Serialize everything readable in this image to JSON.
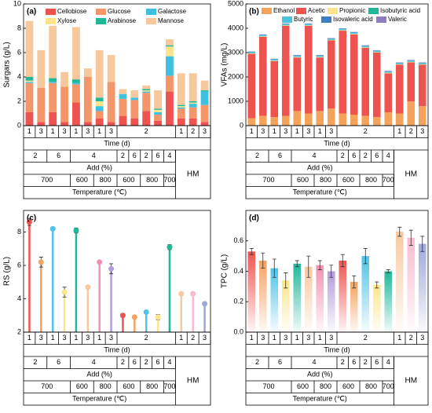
{
  "x_table": {
    "time": [
      {
        "label": "1",
        "span": 1
      },
      {
        "label": "3",
        "span": 1
      },
      {
        "label": "1",
        "span": 1
      },
      {
        "label": "3",
        "span": 1
      },
      {
        "label": "1",
        "span": 1
      },
      {
        "label": "3",
        "span": 1
      },
      {
        "label": "1",
        "span": 1
      },
      {
        "label": "3",
        "span": 1
      },
      {
        "label": "2",
        "span": 5
      },
      {
        "label": "1",
        "span": 1
      },
      {
        "label": "2",
        "span": 1
      },
      {
        "label": "3",
        "span": 1
      }
    ],
    "time_title": "Time (d)",
    "add": [
      {
        "label": "2",
        "span": 2
      },
      {
        "label": "6",
        "span": 2
      },
      {
        "label": "4",
        "span": 4
      },
      {
        "label": "2",
        "span": 1
      },
      {
        "label": "6",
        "span": 1
      },
      {
        "label": "2",
        "span": 1
      },
      {
        "label": "6",
        "span": 1
      },
      {
        "label": "4",
        "span": 1
      }
    ],
    "add_title": "Add (%)",
    "temperature": [
      {
        "label": "700",
        "span": 4
      },
      {
        "label": "600",
        "span": 2
      },
      {
        "label": "800",
        "span": 2
      },
      {
        "label": "600",
        "span": 2
      },
      {
        "label": "800",
        "span": 2
      },
      {
        "label": "700",
        "span": 1
      }
    ],
    "temperature_title": "Temperature (℃)",
    "hm": "HM"
  },
  "chart_data": [
    {
      "type": "stacked_bar",
      "panel_label": "(a)",
      "ylabel": "Surgars (g/L)",
      "ylim": [
        0,
        10
      ],
      "yticks": [
        0,
        2,
        4,
        6,
        8,
        10
      ],
      "series": [
        {
          "name": "Cellobiose",
          "color": "#ef5350",
          "values": [
            1.1,
            0.3,
            1.1,
            0.3,
            1.9,
            0.3,
            0.6,
            0.3,
            0.8,
            0.6,
            1.2,
            0.4,
            2.8,
            0.6,
            0.6,
            0.3
          ]
        },
        {
          "name": "Glucose",
          "color": "#f4956a",
          "values": [
            2.4,
            2.8,
            2.4,
            2.9,
            1.5,
            3.7,
            0.6,
            3.3,
            1.4,
            1.5,
            1.5,
            0.5,
            1.3,
            0.8,
            0.9,
            1.4
          ]
        },
        {
          "name": "Galactose",
          "color": "#3ec1e0",
          "values": [
            0.1,
            0,
            0.1,
            0,
            0.1,
            0,
            0.4,
            0,
            0.4,
            0.2,
            0.1,
            0.2,
            1.6,
            0.1,
            0.3,
            1.1
          ]
        },
        {
          "name": "Xylose",
          "color": "#fde38a",
          "values": [
            0.1,
            0,
            0,
            0,
            0,
            0,
            0.4,
            0,
            0,
            0,
            0.1,
            0.2,
            0.8,
            0.1,
            0.1,
            0
          ]
        },
        {
          "name": "Arabinose",
          "color": "#1fb89a",
          "values": [
            0.3,
            0,
            0.3,
            0,
            0.3,
            0,
            0.3,
            0,
            0,
            0,
            0.1,
            0.1,
            0.1,
            0.1,
            0.1,
            0.1
          ]
        },
        {
          "name": "Mannose",
          "color": "#f7c89b",
          "values": [
            4.6,
            3.1,
            4.3,
            1.2,
            4.3,
            0.7,
            3.9,
            2.2,
            0.4,
            0.6,
            0.3,
            1.5,
            0.5,
            2.6,
            2.3,
            0.8
          ]
        }
      ]
    },
    {
      "type": "stacked_bar",
      "panel_label": "(b)",
      "ylabel": "VFAs (mg/L)",
      "ylim": [
        0,
        5000
      ],
      "yticks": [
        0,
        1000,
        2000,
        3000,
        4000,
        5000
      ],
      "series": [
        {
          "name": "Ethanol",
          "color": "#f5a35a",
          "values": [
            300,
            400,
            350,
            400,
            600,
            500,
            600,
            700,
            500,
            450,
            400,
            350,
            550,
            500,
            1000,
            800
          ]
        },
        {
          "name": "Acetic",
          "color": "#ef5350",
          "values": [
            2650,
            3250,
            2300,
            3700,
            2200,
            3600,
            2200,
            2800,
            3400,
            3300,
            2800,
            2650,
            1600,
            2000,
            1600,
            1700
          ]
        },
        {
          "name": "Propionic",
          "color": "#fde38a",
          "values": [
            20,
            20,
            20,
            20,
            20,
            20,
            20,
            20,
            20,
            20,
            20,
            20,
            20,
            20,
            20,
            20
          ]
        },
        {
          "name": "Isobutyric acid",
          "color": "#1fb89a",
          "values": [
            10,
            10,
            10,
            10,
            10,
            10,
            10,
            10,
            10,
            10,
            10,
            10,
            10,
            10,
            10,
            10
          ]
        },
        {
          "name": "Butyric",
          "color": "#4ec3e0",
          "values": [
            40,
            40,
            40,
            40,
            40,
            40,
            40,
            40,
            40,
            40,
            40,
            40,
            40,
            40,
            40,
            40
          ]
        },
        {
          "name": "Isovaleric acid",
          "color": "#3d7fc6",
          "values": [
            20,
            20,
            20,
            20,
            20,
            20,
            20,
            20,
            20,
            20,
            20,
            20,
            20,
            20,
            20,
            20
          ]
        },
        {
          "name": "Valeric",
          "color": "#8e7cc3",
          "values": [
            10,
            10,
            10,
            10,
            10,
            10,
            10,
            10,
            10,
            10,
            10,
            10,
            10,
            10,
            10,
            10
          ]
        }
      ]
    },
    {
      "type": "lollipop",
      "panel_label": "(c)",
      "ylabel": "RS (g/L)",
      "ylim": [
        2,
        9.3
      ],
      "yticks": [
        2,
        4,
        6,
        8
      ],
      "values": [
        8.6,
        6.2,
        8.2,
        4.4,
        8.1,
        4.7,
        6.2,
        5.8,
        3.0,
        2.9,
        3.2,
        2.9,
        7.1,
        4.3,
        4.3,
        3.7
      ],
      "errors": [
        0.2,
        0.3,
        0.1,
        0.3,
        0.15,
        0.1,
        0.05,
        0.3,
        0.1,
        0.1,
        0.1,
        0.15,
        0.15,
        0.05,
        0.1,
        0.1
      ],
      "colors": [
        "#ef5350",
        "#f4a261",
        "#4fc3e8",
        "#fde68a",
        "#20b89a",
        "#f8c9a0",
        "#f48fb1",
        "#b39ddb",
        "#ef5350",
        "#f4a261",
        "#4fc3e8",
        "#fde68a",
        "#20b89a",
        "#f8c9a0",
        "#f8bbd0",
        "#9fa8da"
      ]
    },
    {
      "type": "gradient_bar",
      "panel_label": "(d)",
      "ylabel": "TPC (g/L)",
      "ylim": [
        0,
        0.8
      ],
      "yticks": [
        {
          "value": 0,
          "label": "0.0"
        },
        0.2,
        0.4,
        0.6
      ],
      "values": [
        0.53,
        0.47,
        0.42,
        0.34,
        0.45,
        0.43,
        0.44,
        0.4,
        0.47,
        0.33,
        0.5,
        0.31,
        0.4,
        0.66,
        0.62,
        0.58
      ],
      "errors": [
        0.02,
        0.05,
        0.06,
        0.05,
        0.02,
        0.07,
        0.03,
        0.04,
        0.04,
        0.04,
        0.05,
        0.02,
        0.01,
        0.03,
        0.05,
        0.05
      ],
      "colors": [
        "#ef5350",
        "#f4a261",
        "#4fc3e8",
        "#fde68a",
        "#20b89a",
        "#f8c9a0",
        "#f48fb1",
        "#b39ddb",
        "#ef5350",
        "#f4a261",
        "#4fc3e8",
        "#fde68a",
        "#20b89a",
        "#f8c9a0",
        "#f8bbd0",
        "#9fa8da"
      ]
    }
  ]
}
